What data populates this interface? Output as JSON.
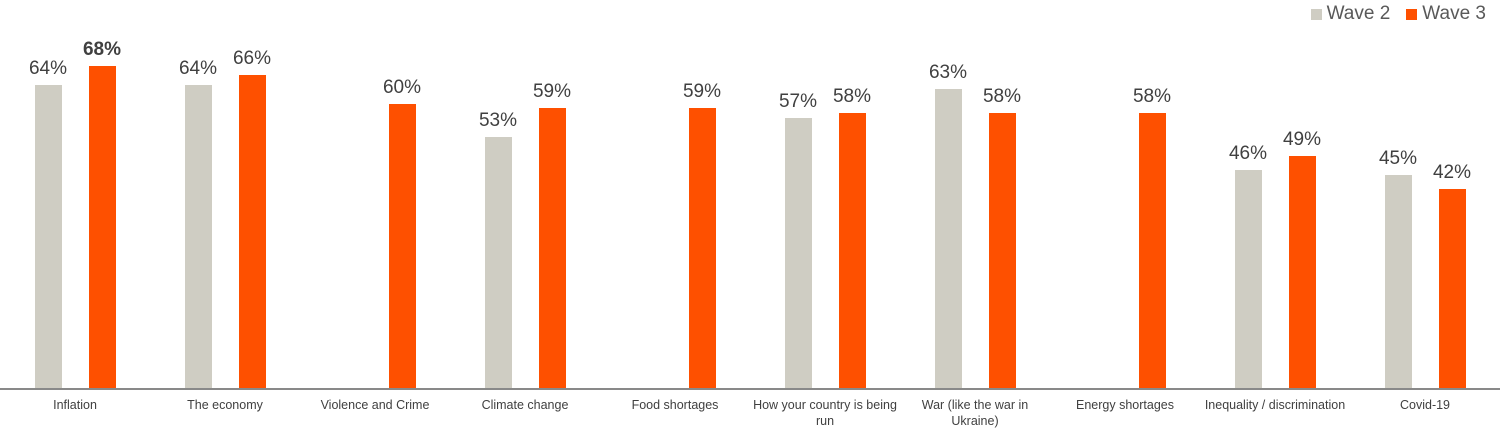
{
  "legend": {
    "items": [
      {
        "label": "Wave 2",
        "color": "#cfcdc3"
      },
      {
        "label": "Wave 3",
        "color": "#fe5000"
      }
    ]
  },
  "chart_data": {
    "type": "bar",
    "title": "",
    "xlabel": "",
    "ylabel": "",
    "grid": false,
    "legend_position": "top-right",
    "ylim": [
      0,
      82
    ],
    "value_suffix": "%",
    "categories": [
      "Inflation",
      "The economy",
      "Violence and Crime",
      "Climate change",
      "Food shortages",
      "How your country is being run",
      "War (like the war in Ukraine)",
      "Energy shortages",
      "Inequality / discrimination",
      "Covid-19"
    ],
    "series": [
      {
        "name": "Wave 2",
        "color": "#cfcdc3",
        "values": [
          64,
          64,
          null,
          53,
          null,
          57,
          63,
          null,
          46,
          45
        ]
      },
      {
        "name": "Wave 3",
        "color": "#fe5000",
        "values": [
          68,
          66,
          60,
          59,
          59,
          58,
          58,
          58,
          49,
          42
        ]
      }
    ],
    "emphasized_point": {
      "series": "Wave 3",
      "category": "Inflation",
      "label": "68%"
    }
  },
  "colors": {
    "background": "#ffffff",
    "axis_line": "#898989",
    "data_label": "#404040",
    "category_label": "#404040",
    "legend_text": "#595959",
    "wave2_bar": "#cfcdc3",
    "wave3_bar": "#fe5000"
  }
}
